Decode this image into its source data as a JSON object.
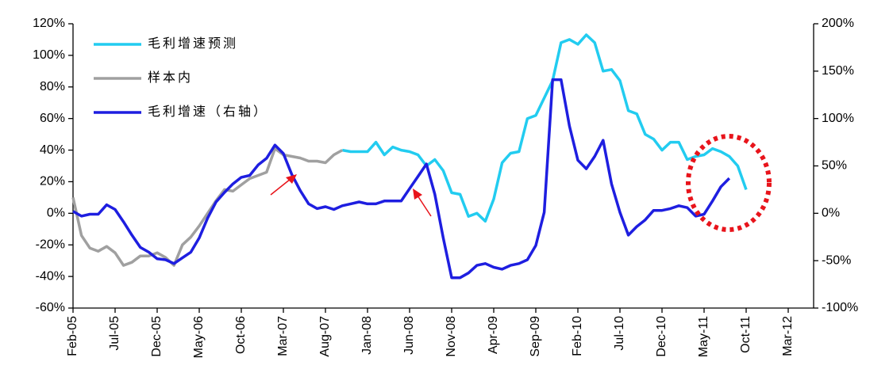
{
  "chart_data": {
    "type": "line",
    "categories": [
      "Feb-05",
      null,
      null,
      null,
      null,
      "Jul-05",
      null,
      null,
      null,
      null,
      "Dec-05",
      null,
      null,
      null,
      null,
      "May-06",
      null,
      null,
      null,
      null,
      "Oct-06",
      null,
      null,
      null,
      null,
      "Mar-07",
      null,
      null,
      null,
      null,
      "Aug-07",
      null,
      null,
      null,
      null,
      "Jan-08",
      null,
      null,
      null,
      null,
      "Jun-08",
      null,
      null,
      null,
      null,
      "Nov-08",
      null,
      null,
      null,
      null,
      "Apr-09",
      null,
      null,
      null,
      null,
      "Sep-09",
      null,
      null,
      null,
      null,
      "Feb-10",
      null,
      null,
      null,
      null,
      "Jul-10",
      null,
      null,
      null,
      null,
      "Dec-10",
      null,
      null,
      null,
      null,
      "May-11",
      null,
      null,
      null,
      null,
      "Oct-11",
      null,
      null,
      null,
      null,
      "Mar-12"
    ],
    "series": [
      {
        "name": "毛利增速预测",
        "color": "#22ccf0",
        "values": [
          null,
          null,
          null,
          null,
          null,
          null,
          null,
          null,
          null,
          null,
          null,
          null,
          null,
          null,
          null,
          null,
          null,
          null,
          null,
          null,
          null,
          null,
          null,
          null,
          null,
          null,
          null,
          null,
          null,
          null,
          null,
          null,
          40,
          39,
          39,
          39,
          45,
          37,
          42,
          40,
          39,
          37,
          30,
          34,
          27,
          13,
          12,
          -2,
          0,
          -5,
          9,
          32,
          38,
          39,
          60,
          62,
          73,
          84,
          108,
          110,
          107,
          113,
          108,
          90,
          91,
          84,
          65,
          63,
          50,
          47,
          40,
          45,
          45,
          34,
          36,
          37,
          41,
          39,
          36,
          30,
          15,
          null,
          null,
          null,
          null,
          null
        ]
      },
      {
        "name": "样本内",
        "color": "#a0a0a0",
        "values": [
          10,
          -14,
          -22,
          -24,
          -21,
          -25,
          -33,
          -31,
          -27,
          -27,
          -25,
          -28,
          -33,
          -20,
          -15,
          -8,
          0,
          8,
          15,
          14,
          18,
          22,
          24,
          26,
          41,
          37,
          36,
          35,
          33,
          33,
          32,
          37,
          40,
          null,
          null,
          null,
          null,
          null,
          null,
          null,
          null,
          null,
          null,
          null,
          null,
          null,
          null,
          null,
          null,
          null,
          null,
          null,
          null,
          null,
          null,
          null,
          null,
          null,
          null,
          null,
          null,
          null,
          null,
          null,
          null,
          null,
          null,
          null,
          null,
          null,
          null,
          null,
          null,
          null,
          null,
          null,
          null,
          null,
          null,
          null,
          null,
          null,
          null,
          null,
          null,
          null
        ]
      },
      {
        "name": "毛利增速（右轴）",
        "color": "#1e1ee0",
        "axis": "y2",
        "values": [
          2,
          -3,
          -1,
          -1,
          9,
          4,
          -9,
          -23,
          -36,
          -41,
          -48,
          -49,
          -53,
          -47,
          -41,
          -26,
          -5,
          12,
          22,
          31,
          38,
          40,
          51,
          58,
          72,
          63,
          41,
          24,
          10,
          5,
          7,
          4,
          8,
          10,
          12,
          10,
          10,
          13,
          13,
          13,
          26,
          39,
          52,
          20,
          -26,
          -68,
          -68,
          -63,
          -55,
          -53,
          -57,
          -59,
          -55,
          -53,
          -49,
          -34,
          1,
          141,
          141,
          92,
          56,
          47,
          60,
          77,
          31,
          1,
          -23,
          -14,
          -7,
          3,
          3,
          5,
          8,
          6,
          -3,
          -1,
          13,
          28,
          37,
          null,
          null,
          null,
          null,
          null,
          null,
          null
        ]
      }
    ],
    "ylim": [
      -60,
      120
    ],
    "yticks": [
      {
        "value": -60,
        "label": "-60%"
      },
      {
        "value": -40,
        "label": "-40%"
      },
      {
        "value": -20,
        "label": "-20%"
      },
      {
        "value": 0,
        "label": "0%"
      },
      {
        "value": 20,
        "label": "20%"
      },
      {
        "value": 40,
        "label": "40%"
      },
      {
        "value": 60,
        "label": "60%"
      },
      {
        "value": 80,
        "label": "80%"
      },
      {
        "value": 100,
        "label": "100%"
      },
      {
        "value": 120,
        "label": "120%"
      }
    ],
    "y2lim": [
      -100,
      200
    ],
    "y2ticks": [
      {
        "value": -100,
        "label": "-100%"
      },
      {
        "value": -50,
        "label": "-50%"
      },
      {
        "value": 0,
        "label": "0%"
      },
      {
        "value": 50,
        "label": "50%"
      },
      {
        "value": 100,
        "label": "100%"
      },
      {
        "value": 150,
        "label": "150%"
      },
      {
        "value": 200,
        "label": "200%"
      }
    ],
    "grid": false,
    "legend": "upper left"
  }
}
